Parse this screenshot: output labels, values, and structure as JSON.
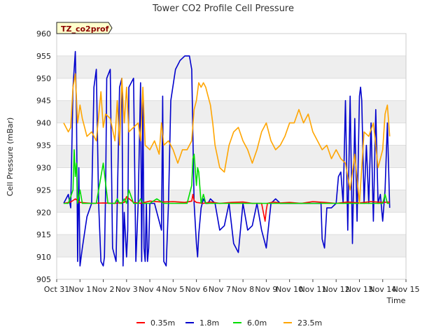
{
  "chart_data": {
    "type": "line",
    "title": "Tower CO2 Profile Cell Pressure",
    "xlabel": "Time",
    "ylabel": "Cell Pressure (mBar)",
    "badge": "TZ_co2prof",
    "x_ticks": [
      "Oct 31",
      "Nov 1",
      "Nov 2",
      "Nov 3",
      "Nov 4",
      "Nov 5",
      "Nov 6",
      "Nov 7",
      "Nov 8",
      "Nov 9",
      "Nov 10",
      "Nov 11",
      "Nov 12",
      "Nov 13",
      "Nov 14",
      "Nov 15"
    ],
    "xlim": [
      0,
      15
    ],
    "ylim": [
      905,
      960
    ],
    "y_ticks": [
      905,
      910,
      915,
      920,
      925,
      930,
      935,
      940,
      945,
      950,
      955,
      960
    ],
    "grid": true,
    "legend_position": "bottom-center",
    "colors": {
      "0.35m": "#ff0000",
      "1.8m": "#0000cc",
      "6.0m": "#00dd00",
      "23.5m": "#ffa500",
      "band": "#eeeeee",
      "badge_fill": "#ffffcc"
    },
    "series": [
      {
        "name": "0.35m",
        "x": [
          0.3,
          0.6,
          0.8,
          1.0,
          1.5,
          2.0,
          2.5,
          2.9,
          3.0,
          3.3,
          3.6,
          4.0,
          4.5,
          5.0,
          5.5,
          5.8,
          5.85,
          5.9,
          6.0,
          6.3,
          6.6,
          7.0,
          7.5,
          8.0,
          8.4,
          8.8,
          8.95,
          9.0,
          9.05,
          9.3,
          9.6,
          10.0,
          10.5,
          11.0,
          11.5,
          12.0,
          12.5,
          13.0,
          13.5,
          14.0,
          14.3
        ],
        "y": [
          922.0,
          922.3,
          923.0,
          922.2,
          922.0,
          922.1,
          922.0,
          922.2,
          923.5,
          922.2,
          922.0,
          922.5,
          922.3,
          922.4,
          922.2,
          922.5,
          924.0,
          922.6,
          922.2,
          922.0,
          922.3,
          922.0,
          922.2,
          922.3,
          922.0,
          922.0,
          918.0,
          920.5,
          922.0,
          922.3,
          922.1,
          922.2,
          922.0,
          922.4,
          922.2,
          922.0,
          922.3,
          922.1,
          922.4,
          922.2,
          922.3
        ]
      },
      {
        "name": "1.8m",
        "x": [
          0.3,
          0.5,
          0.6,
          0.7,
          0.8,
          0.85,
          0.9,
          0.95,
          1.0,
          1.1,
          1.3,
          1.5,
          1.6,
          1.7,
          1.8,
          1.9,
          2.0,
          2.05,
          2.1,
          2.15,
          2.3,
          2.4,
          2.55,
          2.6,
          2.7,
          2.8,
          2.85,
          2.9,
          3.0,
          3.05,
          3.1,
          3.3,
          3.4,
          3.5,
          3.6,
          3.65,
          3.7,
          3.75,
          3.8,
          3.85,
          3.9,
          3.95,
          4.0,
          4.2,
          4.4,
          4.5,
          4.55,
          4.6,
          4.7,
          4.8,
          4.9,
          5.1,
          5.3,
          5.5,
          5.7,
          5.8,
          5.9,
          6.0,
          6.05,
          6.1,
          6.2,
          6.3,
          6.4,
          6.5,
          6.6,
          6.8,
          7.0,
          7.2,
          7.4,
          7.6,
          7.8,
          8.0,
          8.2,
          8.4,
          8.6,
          8.8,
          9.0,
          9.2,
          9.4,
          9.6,
          9.8,
          10.0,
          10.2,
          10.4,
          10.6,
          10.8,
          11.0,
          11.2,
          11.35,
          11.4,
          11.5,
          11.6,
          11.8,
          12.0,
          12.1,
          12.2,
          12.3,
          12.4,
          12.5,
          12.6,
          12.7,
          12.8,
          12.9,
          13.0,
          13.05,
          13.1,
          13.2,
          13.3,
          13.4,
          13.5,
          13.6,
          13.7,
          13.8,
          13.9,
          14.0,
          14.1,
          14.2,
          14.3
        ],
        "y": [
          922,
          924,
          921,
          948,
          956,
          942,
          909,
          930,
          908,
          912,
          919,
          922,
          948,
          952,
          922,
          909,
          908,
          910,
          925,
          950,
          952,
          912,
          909,
          922,
          948,
          950,
          908,
          920,
          910,
          916,
          948,
          950,
          909,
          922,
          949,
          909,
          945,
          912,
          909,
          922,
          909,
          912,
          922,
          922,
          918,
          916,
          946,
          909,
          908,
          922,
          945,
          952,
          954,
          955,
          955,
          952,
          922,
          913,
          910,
          915,
          921,
          923,
          922,
          922,
          923,
          922,
          916,
          917,
          922,
          913,
          911,
          922,
          916,
          917,
          922,
          916,
          912,
          922,
          923,
          922,
          922,
          922,
          922,
          922,
          922,
          922,
          922,
          922,
          922,
          914,
          912,
          921,
          921,
          922,
          928,
          929,
          922,
          945,
          916,
          946,
          913,
          941,
          918,
          946,
          948,
          945,
          922,
          935,
          922,
          940,
          918,
          943,
          922,
          924,
          918,
          925,
          940,
          921
        ]
      },
      {
        "name": "6.0m",
        "x": [
          0.3,
          0.5,
          0.7,
          0.75,
          0.8,
          0.85,
          0.9,
          1.0,
          1.1,
          1.3,
          1.5,
          1.6,
          1.7,
          1.8,
          1.9,
          2.0,
          2.2,
          2.4,
          2.5,
          2.6,
          2.7,
          2.8,
          2.9,
          3.0,
          3.1,
          3.3,
          3.4,
          3.5,
          3.6,
          3.7,
          3.8,
          3.9,
          4.0,
          4.3,
          4.6,
          5.0,
          5.3,
          5.6,
          5.8,
          5.85,
          5.9,
          6.0,
          6.05,
          6.1,
          6.2,
          6.3,
          6.4,
          6.6,
          6.8,
          7.0,
          7.5,
          8.0,
          8.5,
          9.0,
          9.3,
          9.6,
          10.0,
          10.5,
          11.0,
          11.5,
          12.0,
          12.5,
          13.0,
          13.3,
          13.5,
          13.8,
          14.0,
          14.1,
          14.2,
          14.3
        ],
        "y": [
          922,
          922,
          925,
          934,
          928,
          931,
          922,
          925,
          922,
          922,
          922,
          922,
          922,
          925,
          928,
          931,
          922,
          922,
          922,
          923,
          922,
          922,
          923,
          922,
          925,
          922,
          922,
          922,
          923,
          922,
          922,
          922,
          922,
          923,
          922,
          922,
          922,
          922,
          926,
          932,
          933,
          926,
          930,
          929,
          922,
          924,
          922,
          922,
          922,
          922,
          922,
          922,
          922,
          922,
          922,
          922,
          922,
          922,
          922,
          922,
          922,
          922,
          922,
          922,
          922,
          922,
          922,
          924,
          922,
          922
        ]
      },
      {
        "name": "23.5m",
        "x": [
          0.3,
          0.5,
          0.6,
          0.7,
          0.8,
          0.9,
          1.0,
          1.1,
          1.3,
          1.5,
          1.7,
          1.9,
          2.0,
          2.1,
          2.3,
          2.5,
          2.6,
          2.7,
          2.8,
          2.9,
          3.0,
          3.1,
          3.3,
          3.5,
          3.6,
          3.7,
          3.8,
          4.0,
          4.2,
          4.4,
          4.5,
          4.6,
          4.8,
          5.0,
          5.2,
          5.4,
          5.6,
          5.8,
          5.9,
          6.0,
          6.1,
          6.2,
          6.3,
          6.4,
          6.5,
          6.6,
          6.7,
          6.8,
          7.0,
          7.2,
          7.4,
          7.6,
          7.8,
          8.0,
          8.2,
          8.4,
          8.6,
          8.8,
          9.0,
          9.2,
          9.4,
          9.6,
          9.8,
          10.0,
          10.2,
          10.4,
          10.6,
          10.8,
          11.0,
          11.2,
          11.4,
          11.6,
          11.8,
          12.0,
          12.2,
          12.4,
          12.6,
          12.8,
          13.0,
          13.2,
          13.4,
          13.6,
          13.8,
          14.0,
          14.1,
          14.2,
          14.3
        ],
        "y": [
          940,
          938,
          939,
          948,
          951,
          940,
          944,
          941,
          937,
          938,
          936,
          947,
          939,
          942,
          941,
          936,
          945,
          935,
          950,
          940,
          948,
          938,
          939,
          940,
          936,
          948,
          935,
          934,
          936,
          933,
          940,
          935,
          936,
          934,
          931,
          934,
          934,
          936,
          943,
          945,
          949,
          948,
          949,
          948,
          946,
          944,
          940,
          935,
          930,
          929,
          935,
          938,
          939,
          936,
          934,
          931,
          934,
          938,
          940,
          936,
          934,
          935,
          937,
          940,
          940,
          943,
          940,
          942,
          938,
          936,
          934,
          935,
          932,
          934,
          932,
          931,
          925,
          933,
          922,
          938,
          937,
          940,
          930,
          934,
          942,
          944,
          937
        ]
      }
    ]
  }
}
